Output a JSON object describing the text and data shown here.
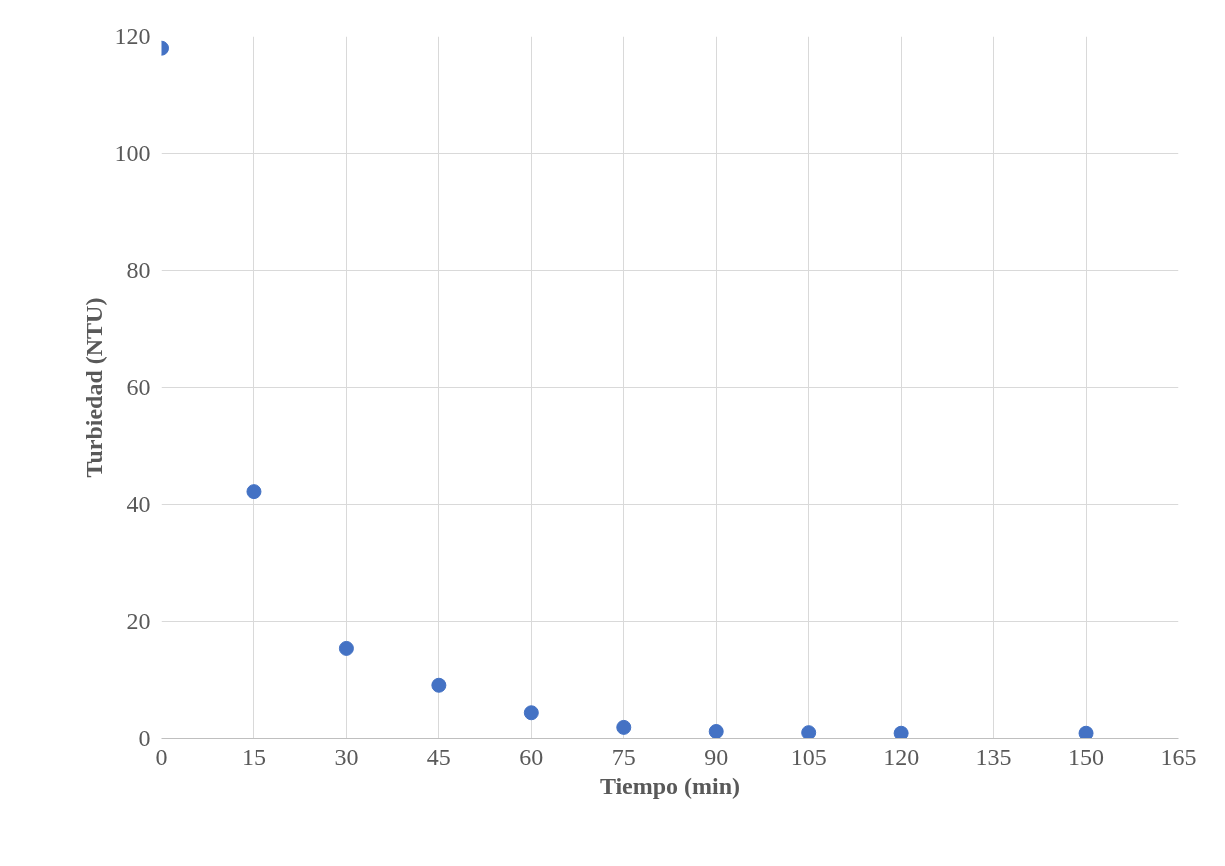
{
  "chart_data": {
    "type": "scatter",
    "xlabel": "Tiempo (min)",
    "ylabel": "Turbiedad (NTU)",
    "x": [
      0,
      15,
      30,
      45,
      60,
      75,
      90,
      105,
      120,
      150
    ],
    "series": [
      {
        "color": "#4472c4",
        "values": [
          118,
          42.2,
          15.4,
          9.1,
          4.4,
          1.9,
          1.2,
          1.0,
          0.9,
          0.9
        ]
      }
    ],
    "xlim": [
      0,
      165
    ],
    "xticks": [
      0,
      15,
      30,
      45,
      60,
      75,
      90,
      105,
      120,
      135,
      150,
      165
    ],
    "ylim": [
      0,
      120
    ],
    "yticks": [
      0,
      20,
      40,
      60,
      80,
      100,
      120
    ],
    "grid": true,
    "marker": "circle"
  }
}
